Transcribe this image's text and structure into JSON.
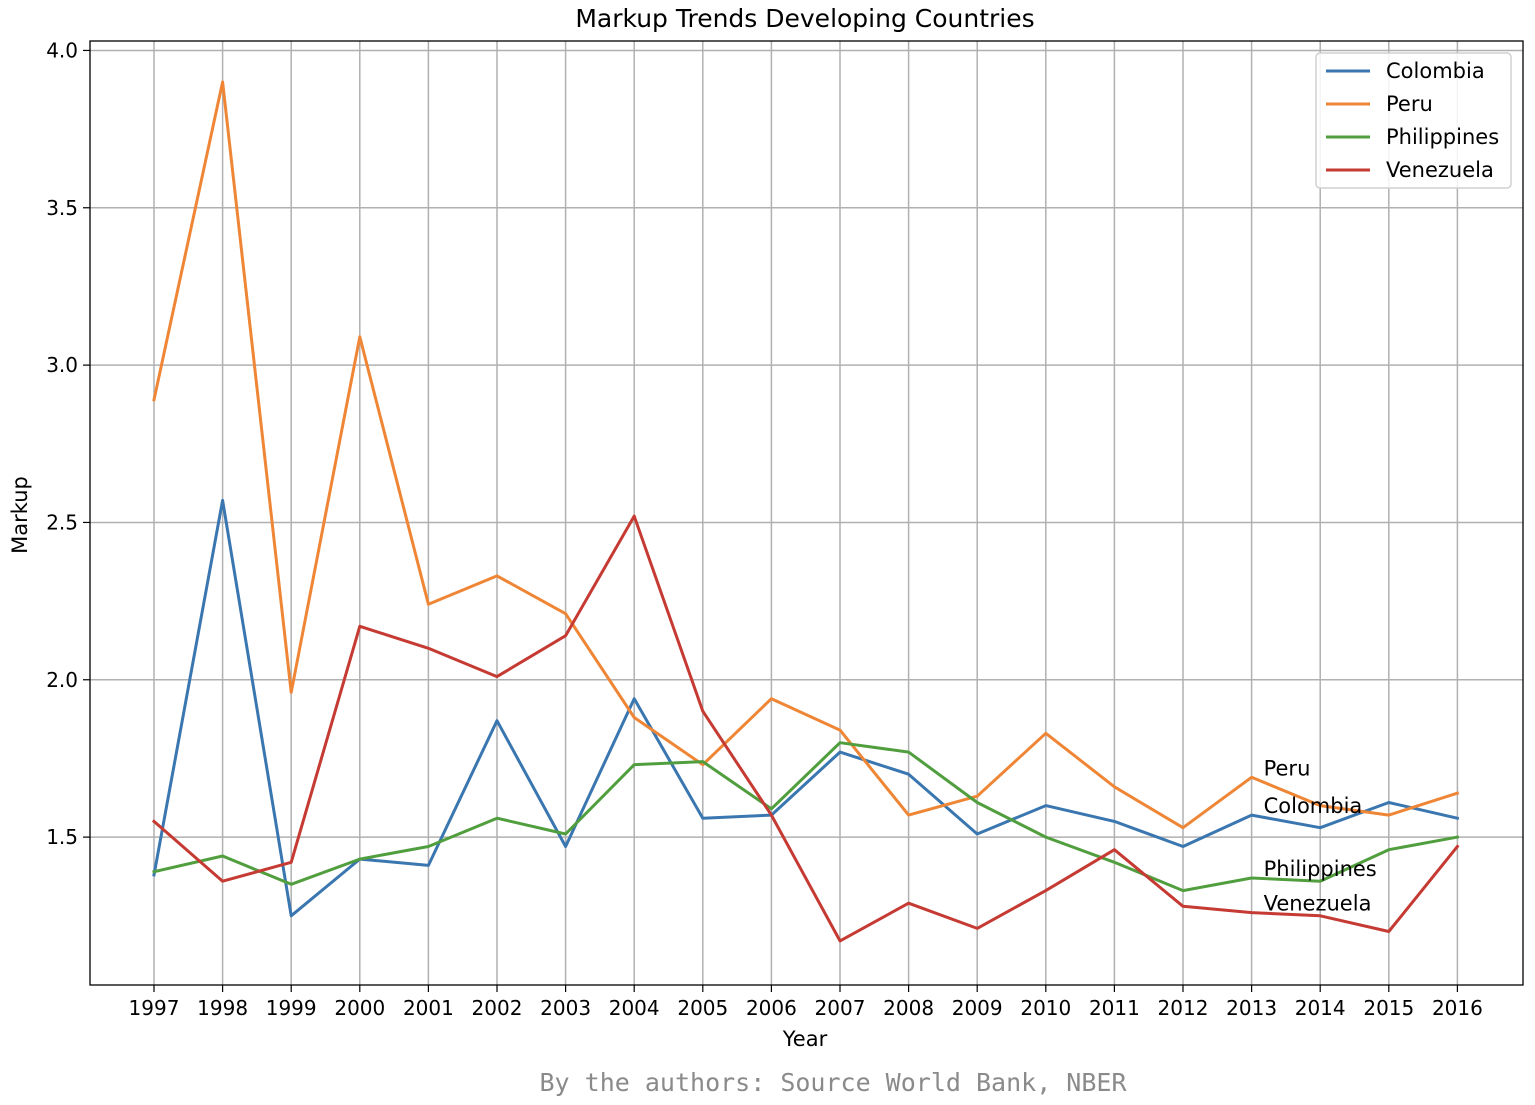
{
  "chart_data": {
    "type": "line",
    "title": "Markup Trends Developing Countries",
    "xlabel": "Year",
    "ylabel": "Markup",
    "x": [
      "1997",
      "1998",
      "1999",
      "2000",
      "2001",
      "2002",
      "2003",
      "2004",
      "2005",
      "2006",
      "2007",
      "2008",
      "2009",
      "2010",
      "2011",
      "2012",
      "2013",
      "2014",
      "2015",
      "2016"
    ],
    "ylim": [
      1.03,
      4.03
    ],
    "yticks": [
      "1.5",
      "2.0",
      "2.5",
      "3.0",
      "3.5",
      "4.0"
    ],
    "grid": true,
    "legend": "top-right",
    "series": [
      {
        "name": "Colombia",
        "color": "#3a76af",
        "values": [
          1.38,
          2.57,
          1.25,
          1.43,
          1.41,
          1.87,
          1.47,
          1.94,
          1.56,
          1.57,
          1.77,
          1.7,
          1.51,
          1.6,
          1.55,
          1.47,
          1.57,
          1.53,
          1.61,
          1.56
        ]
      },
      {
        "name": "Peru",
        "color": "#ef8636",
        "values": [
          2.89,
          3.9,
          1.96,
          3.09,
          2.24,
          2.33,
          2.21,
          1.88,
          1.73,
          1.94,
          1.84,
          1.57,
          1.63,
          1.83,
          1.66,
          1.53,
          1.69,
          1.6,
          1.57,
          1.64
        ]
      },
      {
        "name": "Philippines",
        "color": "#519e3e",
        "values": [
          1.39,
          1.44,
          1.35,
          1.43,
          1.47,
          1.56,
          1.51,
          1.73,
          1.74,
          1.59,
          1.8,
          1.77,
          1.61,
          1.5,
          1.42,
          1.33,
          1.37,
          1.36,
          1.46,
          1.5
        ]
      },
      {
        "name": "Venezuela",
        "color": "#c53a32",
        "values": [
          1.55,
          1.36,
          1.42,
          2.17,
          2.1,
          2.01,
          2.14,
          2.52,
          1.9,
          1.57,
          1.17,
          1.29,
          1.21,
          1.33,
          1.46,
          1.28,
          1.26,
          1.25,
          1.2,
          1.47
        ]
      }
    ],
    "annotations": [
      {
        "text": "Peru",
        "x": "2013",
        "y": 1.69
      },
      {
        "text": "Colombia",
        "x": "2013",
        "y": 1.57
      },
      {
        "text": "Philippines",
        "x": "2013",
        "y": 1.37
      },
      {
        "text": "Venezuela",
        "x": "2013",
        "y": 1.26
      }
    ]
  },
  "source_note": "By the authors: Source World Bank, NBER"
}
